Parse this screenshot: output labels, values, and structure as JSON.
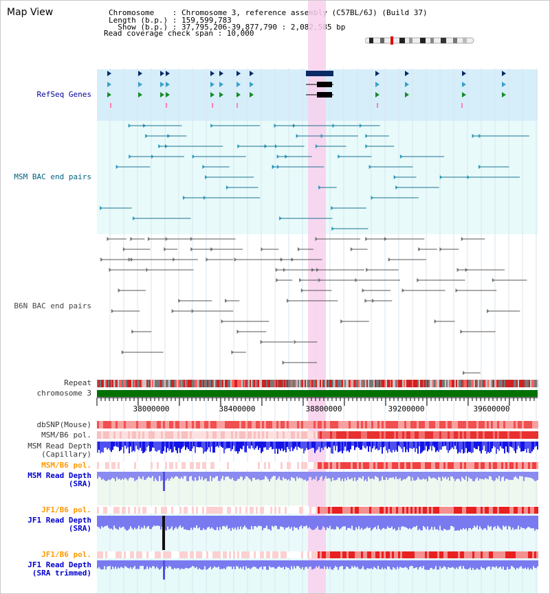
{
  "title": "Map View",
  "info": {
    "line1": "Chromosome    : Chromosome 3, reference assembly (C57BL/6J) (Build 37)",
    "line2": "Length (b.p.) : 159,599,783",
    "line3": "  Show (b.p.) : 37,795,206-39,877,790 : 2,082,585 bp",
    "line4": "Read coverage check span : 10,000"
  },
  "tracks": {
    "refseq": {
      "label": "RefSeq Genes",
      "color": "#000099"
    },
    "msm_bac": {
      "label": "MSM BAC end pairs",
      "color": "#006080"
    },
    "b6n_bac": {
      "label": "B6N BAC end pairs",
      "color": "#444444"
    },
    "repeat": {
      "label": "Repeat"
    },
    "chromosome": {
      "label": "chromosome 3"
    },
    "dbsnp": {
      "label": "dbSNP(Mouse)"
    },
    "msm_b6_pol_1": {
      "label": "MSM/B6 pol."
    },
    "msm_depth_cap": {
      "label": "MSM Read Depth\n(Capillary)"
    },
    "msm_b6_pol_2": {
      "label": "MSM/B6 pol."
    },
    "msm_depth_sra": {
      "label": "MSM Read Depth\n(SRA)"
    },
    "jf1_b6_pol_1": {
      "label": "JF1/B6 pol."
    },
    "jf1_depth_sra": {
      "label": "JF1 Read Depth\n(SRA)"
    },
    "jf1_b6_pol_2": {
      "label": "JF1/B6 pol."
    },
    "jf1_depth_trim": {
      "label": "JF1 Read Depth\n(SRA trimmed)"
    }
  },
  "axis": {
    "ticks": [
      "38000000",
      "38400000",
      "38800000",
      "39200000",
      "39600000"
    ]
  },
  "colors": {
    "highlight": "#f8d0ec",
    "refseq_bg": "#d6eefa",
    "bac_bg": "#e8fafa",
    "depth_bg": "#eef8ee",
    "chromosome": "#007000",
    "depth_blue": "#1414e6",
    "depth_lav": "#8a8af0",
    "snp_red": "#ff4040",
    "pol_msm": "#ff9900",
    "pol_jf1": "#ff9900"
  }
}
